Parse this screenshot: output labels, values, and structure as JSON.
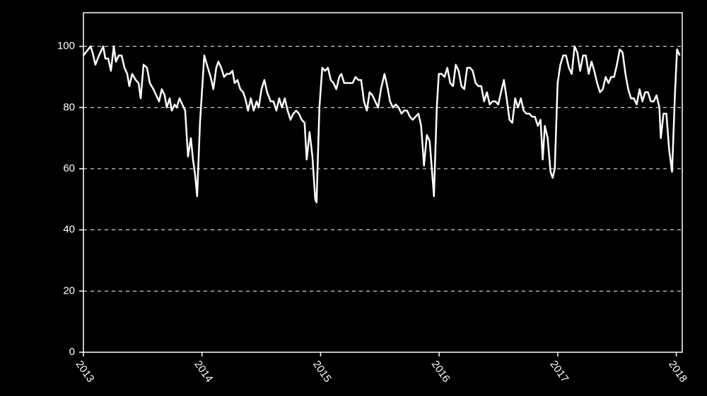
{
  "chart_data": {
    "type": "line",
    "x": [
      2013,
      2013.06,
      2013.077,
      2013.101,
      2013.131,
      2013.167,
      2013.185,
      2013.209,
      2013.232,
      2013.256,
      2013.274,
      2013.298,
      2013.322,
      2013.346,
      2013.369,
      2013.387,
      2013.411,
      2013.441,
      2013.465,
      2013.483,
      2013.507,
      2013.536,
      2013.56,
      2013.59,
      2013.614,
      2013.638,
      2013.661,
      2013.685,
      2013.703,
      2013.727,
      2013.745,
      2013.769,
      2013.787,
      2013.81,
      2013.834,
      2013.858,
      2013.882,
      2013.906,
      2013.924,
      2013.942,
      2013.959,
      2013.983,
      2014.019,
      2014.049,
      2014.073,
      2014.096,
      2014.12,
      2014.138,
      2014.162,
      2014.186,
      2014.21,
      2014.234,
      2014.257,
      2014.275,
      2014.299,
      2014.323,
      2014.347,
      2014.365,
      2014.388,
      2014.412,
      2014.436,
      2014.46,
      2014.478,
      2014.502,
      2014.526,
      2014.549,
      2014.579,
      2014.603,
      2014.627,
      2014.651,
      2014.674,
      2014.698,
      2014.722,
      2014.746,
      2014.77,
      2014.794,
      2014.817,
      2014.841,
      2014.865,
      2014.883,
      2014.907,
      2014.931,
      2014.955,
      2014.966,
      2014.99,
      2015.014,
      2015.038,
      2015.062,
      2015.086,
      2015.109,
      2015.133,
      2015.157,
      2015.175,
      2015.199,
      2015.223,
      2015.247,
      2015.27,
      2015.294,
      2015.318,
      2015.342,
      2015.366,
      2015.39,
      2015.413,
      2015.437,
      2015.461,
      2015.485,
      2015.509,
      2015.539,
      2015.562,
      2015.586,
      2015.61,
      2015.634,
      2015.658,
      2015.682,
      2015.705,
      2015.729,
      2015.753,
      2015.777,
      2015.801,
      2015.825,
      2015.848,
      2015.872,
      2015.896,
      2015.92,
      2015.938,
      2015.956,
      2015.98,
      2015.997,
      2016.021,
      2016.045,
      2016.069,
      2016.093,
      2016.117,
      2016.14,
      2016.164,
      2016.188,
      2016.212,
      2016.236,
      2016.26,
      2016.283,
      2016.307,
      2016.331,
      2016.355,
      2016.379,
      2016.403,
      2016.426,
      2016.45,
      2016.474,
      2016.498,
      2016.522,
      2016.546,
      2016.569,
      2016.593,
      2016.617,
      2016.641,
      2016.665,
      2016.689,
      2016.712,
      2016.736,
      2016.76,
      2016.784,
      2016.808,
      2016.832,
      2016.855,
      2016.873,
      2016.891,
      2016.915,
      2016.939,
      2016.957,
      2016.975,
      2016.999,
      2017.022,
      2017.046,
      2017.07,
      2017.094,
      2017.118,
      2017.142,
      2017.165,
      2017.189,
      2017.213,
      2017.237,
      2017.261,
      2017.285,
      2017.308,
      2017.332,
      2017.356,
      2017.38,
      2017.404,
      2017.428,
      2017.451,
      2017.475,
      2017.499,
      2017.523,
      2017.547,
      2017.571,
      2017.594,
      2017.618,
      2017.642,
      2017.666,
      2017.69,
      2017.714,
      2017.737,
      2017.761,
      2017.785,
      2017.809,
      2017.833,
      2017.857,
      2017.869,
      2017.892,
      2017.916,
      2017.94,
      2017.964,
      2017.988,
      2018.006,
      2018.029
    ],
    "values": [
      97,
      100,
      98,
      94,
      97,
      100,
      96,
      96,
      92,
      100,
      95,
      97,
      97,
      93,
      91,
      87,
      91,
      89,
      88,
      83,
      94,
      93,
      88,
      86,
      84,
      82,
      86,
      84,
      80,
      83,
      79,
      81,
      80,
      83,
      81,
      79,
      64,
      70,
      63,
      58,
      51,
      75,
      97,
      93,
      90,
      86,
      93,
      95,
      93,
      90,
      91,
      91,
      92,
      88,
      89,
      86,
      85,
      83,
      79,
      83,
      79,
      82,
      80,
      86,
      89,
      85,
      82,
      82,
      79,
      83,
      80,
      83,
      79,
      76,
      78,
      79,
      78,
      76,
      75,
      63,
      72,
      64,
      50,
      49,
      80,
      93,
      92,
      93,
      89,
      88,
      86,
      90,
      91,
      88,
      88,
      88,
      88,
      90,
      89,
      89,
      82,
      79,
      85,
      84,
      82,
      80,
      86,
      91,
      87,
      82,
      80,
      81,
      80,
      78,
      79,
      79,
      77,
      76,
      77,
      78,
      74,
      61,
      71,
      69,
      60,
      51,
      80,
      91,
      91,
      90,
      93,
      88,
      87,
      94,
      92,
      87,
      86,
      93,
      93,
      92,
      88,
      87,
      87,
      82,
      85,
      81,
      82,
      82,
      81,
      85,
      89,
      83,
      76,
      75,
      83,
      80,
      83,
      79,
      78,
      78,
      77,
      77,
      74,
      76,
      63,
      74,
      70,
      59,
      57,
      60,
      88,
      94,
      97,
      97,
      93,
      91,
      100,
      98,
      92,
      97,
      97,
      91,
      95,
      92,
      88,
      85,
      86,
      90,
      88,
      90,
      90,
      94,
      99,
      98,
      91,
      86,
      83,
      83,
      81,
      86,
      82,
      85,
      85,
      82,
      82,
      84,
      80,
      70,
      78,
      78,
      66,
      59,
      84,
      99,
      97
    ],
    "color": "#ffffff",
    "xlim": [
      2013,
      2018.05
    ],
    "xticks": [
      2013,
      2014,
      2015,
      2016,
      2017,
      2018
    ],
    "ylim": [
      0,
      111
    ],
    "yticks": [
      0,
      20,
      40,
      60,
      80,
      100
    ],
    "grid": true
  }
}
